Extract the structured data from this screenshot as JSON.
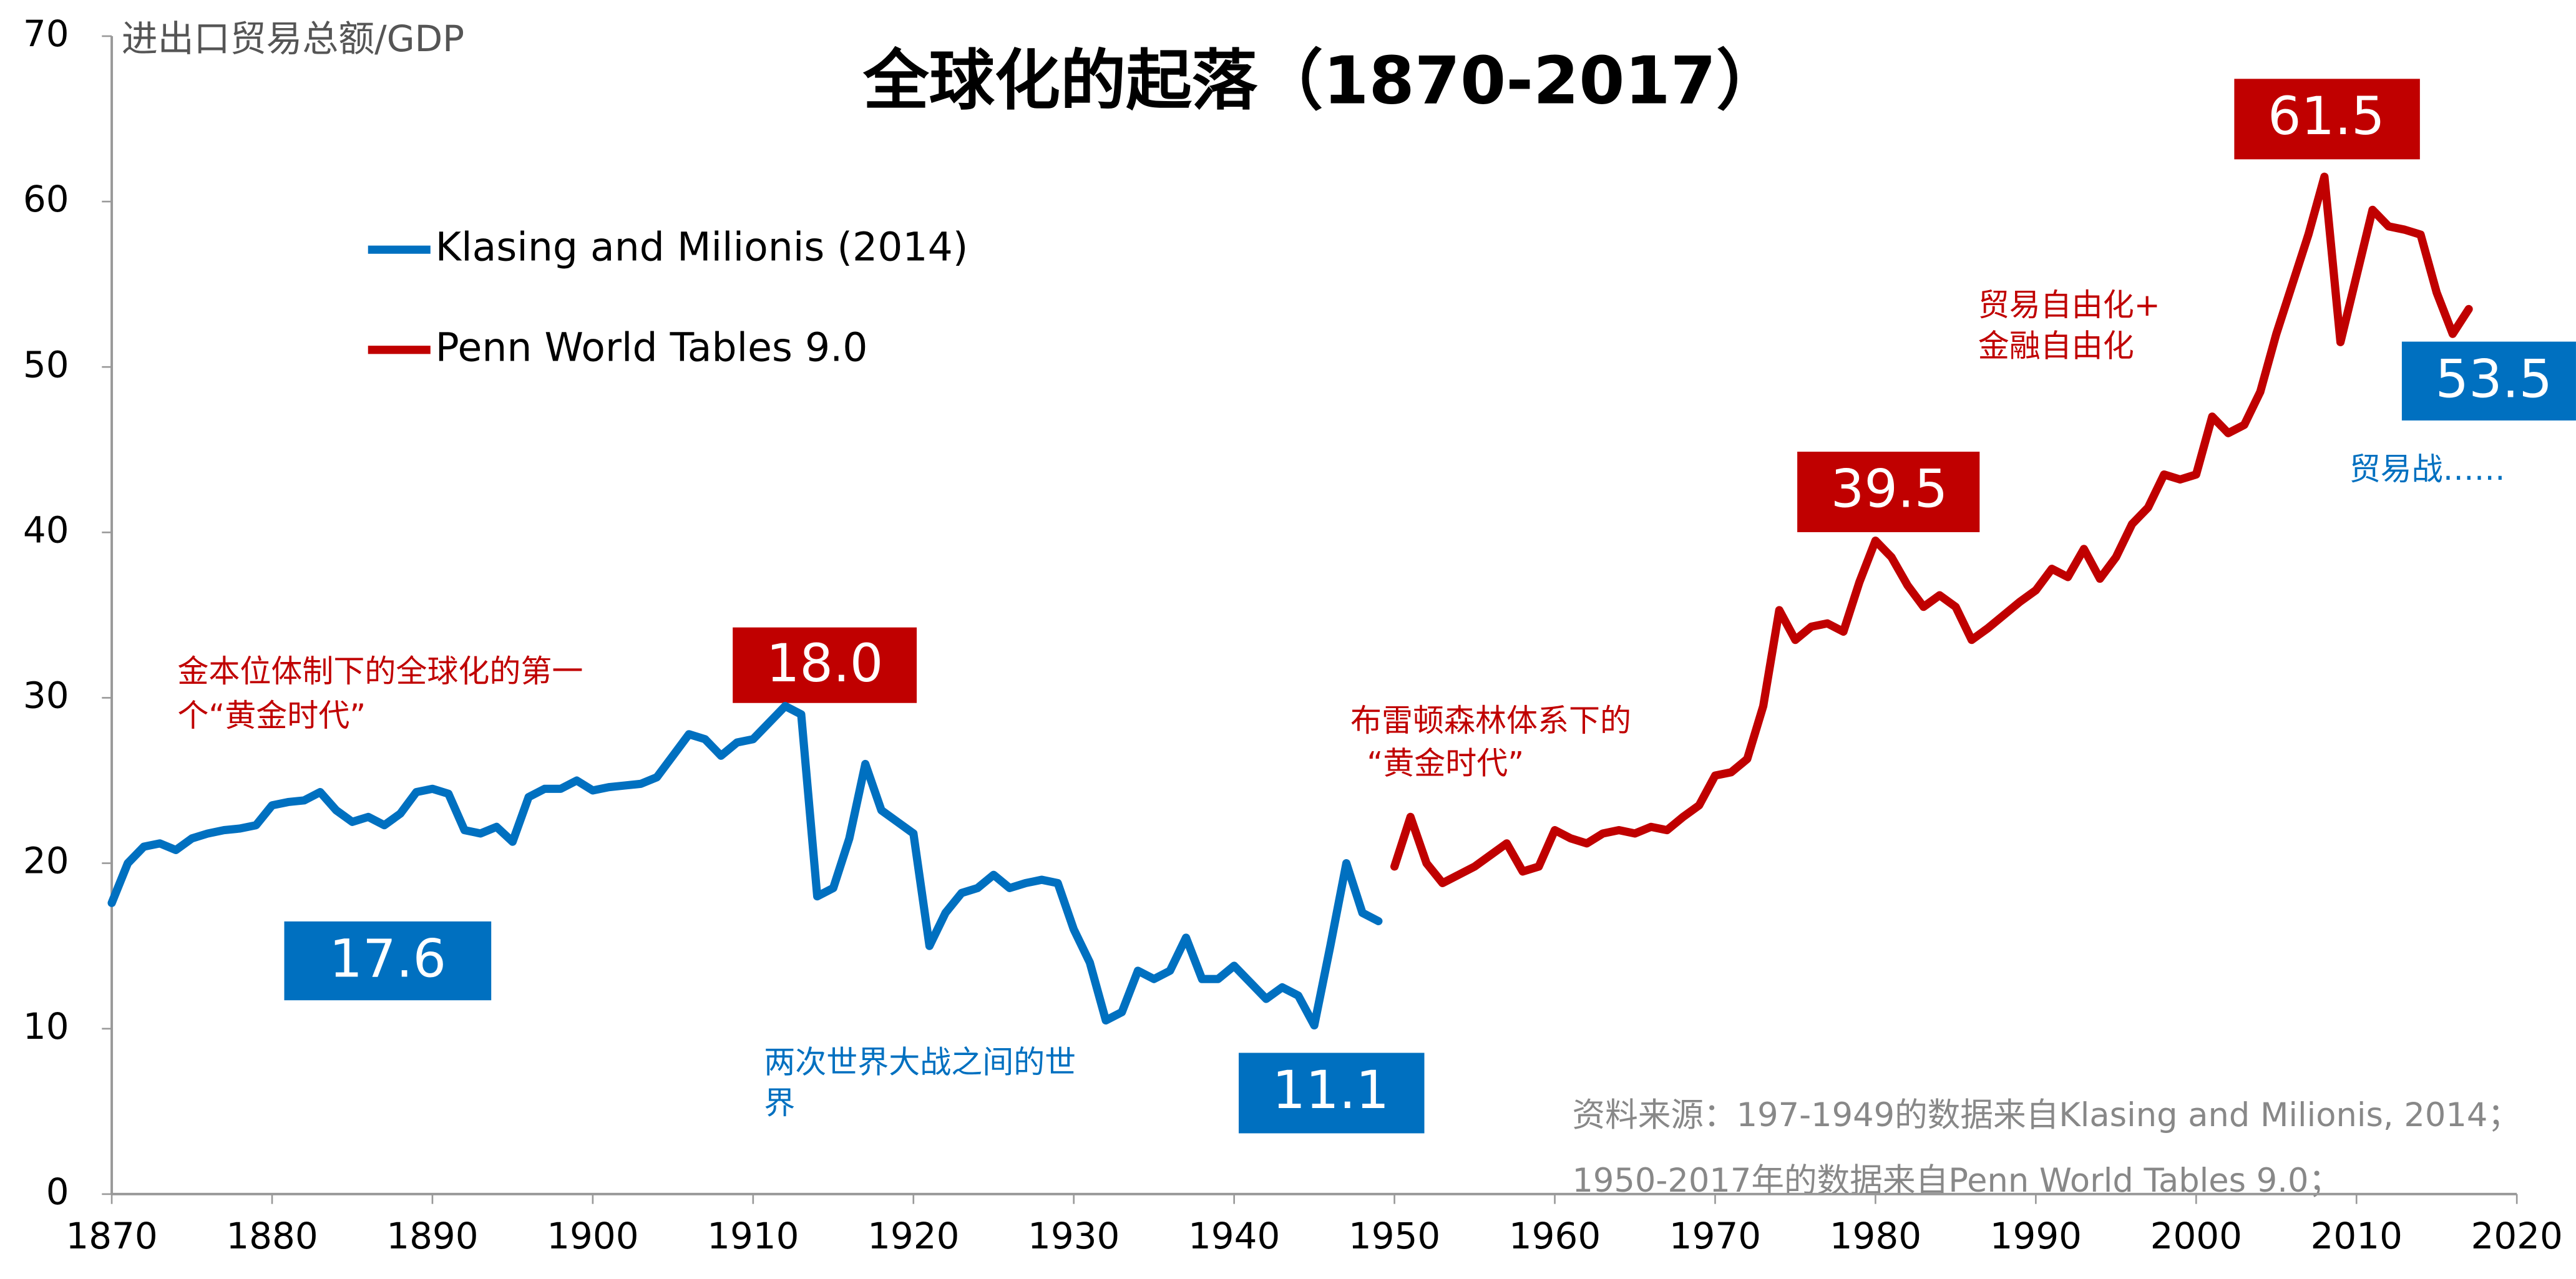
{
  "chart_data": {
    "type": "line",
    "title": "全球化的起落（1870-2017）",
    "y_label": "进出口贸易总额/GDP",
    "xlim": [
      1870,
      2020
    ],
    "xticks": [
      1870,
      1880,
      1890,
      1900,
      1910,
      1920,
      1930,
      1940,
      1950,
      1960,
      1970,
      1980,
      1990,
      2000,
      2010,
      2020
    ],
    "ylim": [
      0,
      70
    ],
    "yticks": [
      0,
      10,
      20,
      30,
      40,
      50,
      60,
      70
    ],
    "series": [
      {
        "name": "Klasing and Milionis (2014)",
        "color": "#0070c0",
        "x": [
          1870,
          1871,
          1872,
          1873,
          1874,
          1875,
          1876,
          1877,
          1878,
          1879,
          1880,
          1881,
          1882,
          1883,
          1884,
          1885,
          1886,
          1887,
          1888,
          1889,
          1890,
          1891,
          1892,
          1893,
          1894,
          1895,
          1896,
          1897,
          1898,
          1899,
          1900,
          1901,
          1902,
          1903,
          1904,
          1905,
          1906,
          1907,
          1908,
          1909,
          1910,
          1911,
          1912,
          1913,
          1914,
          1915,
          1916,
          1917,
          1918,
          1919,
          1920,
          1921,
          1922,
          1923,
          1924,
          1925,
          1926,
          1927,
          1928,
          1929,
          1930,
          1931,
          1932,
          1933,
          1934,
          1935,
          1936,
          1937,
          1938,
          1939,
          1940,
          1941,
          1942,
          1943,
          1944,
          1945,
          1946,
          1947,
          1948,
          1949
        ],
        "values": [
          17.6,
          20,
          21,
          21.2,
          20.8,
          21.5,
          21.8,
          22,
          22.1,
          22.3,
          23.5,
          23.7,
          23.8,
          24.3,
          23.2,
          22.5,
          22.8,
          22.3,
          23,
          24.3,
          24.5,
          24.2,
          22,
          21.8,
          22.2,
          21.3,
          24,
          24.5,
          24.5,
          25,
          24.4,
          24.6,
          24.7,
          24.8,
          25.2,
          26.5,
          27.8,
          27.5,
          26.5,
          27.3,
          27.5,
          28.5,
          29.5,
          29,
          18,
          18.5,
          21.5,
          26,
          23.2,
          22.5,
          21.8,
          15,
          17,
          18.2,
          18.5,
          19.3,
          18.5,
          18.8,
          19,
          18.8,
          16,
          14,
          10.5,
          11,
          13.5,
          13,
          13.5,
          15.5,
          13,
          13,
          13.8,
          12.8,
          11.8,
          12.5,
          12,
          10.2,
          15,
          20,
          17,
          16.5
        ]
      },
      {
        "name": "Penn World Tables 9.0",
        "color": "#c00000",
        "x": [
          1950,
          1951,
          1952,
          1953,
          1954,
          1955,
          1956,
          1957,
          1958,
          1959,
          1960,
          1961,
          1962,
          1963,
          1964,
          1965,
          1966,
          1967,
          1968,
          1969,
          1970,
          1971,
          1972,
          1973,
          1974,
          1975,
          1976,
          1977,
          1978,
          1979,
          1980,
          1981,
          1982,
          1983,
          1984,
          1985,
          1986,
          1987,
          1988,
          1989,
          1990,
          1991,
          1992,
          1993,
          1994,
          1995,
          1996,
          1997,
          1998,
          1999,
          2000,
          2001,
          2002,
          2003,
          2004,
          2005,
          2006,
          2007,
          2008,
          2009,
          2010,
          2011,
          2012,
          2013,
          2014,
          2015,
          2016,
          2017
        ],
        "values": [
          19.8,
          22.8,
          20,
          18.8,
          19.3,
          19.8,
          20.5,
          21.2,
          19.5,
          19.8,
          22,
          21.5,
          21.2,
          21.8,
          22,
          21.8,
          22.2,
          22,
          22.8,
          23.5,
          25.3,
          25.5,
          26.3,
          29.5,
          35.3,
          33.5,
          34.3,
          34.5,
          34,
          37,
          39.5,
          38.5,
          36.8,
          35.5,
          36.2,
          35.5,
          33.5,
          34.2,
          35,
          35.8,
          36.5,
          37.8,
          37.3,
          39,
          37.2,
          38.5,
          40.5,
          41.5,
          43.5,
          43.2,
          43.5,
          47,
          46,
          46.5,
          48.5,
          52,
          55,
          58,
          61.5,
          51.5,
          55.5,
          59.5,
          58.5,
          58.3,
          58,
          54.5,
          52,
          53.5
        ]
      }
    ],
    "value_boxes": [
      "17.6",
      "18.0",
      "11.1",
      "39.5",
      "61.5",
      "53.5"
    ],
    "annotations": [
      "金本位体制下的全球化的第一",
      "个“黄金时代”",
      "两次世界大战之间的世",
      "界",
      "布雷顿森林体系下的",
      "“黄金时代”",
      "贸易自由化+",
      "金融自由化",
      "贸易战……"
    ],
    "source": [
      "资料来源：197-1949的数据来自Klasing and Milionis, 2014；",
      "1950-2017年的数据来自Penn World Tables 9.0；"
    ]
  }
}
